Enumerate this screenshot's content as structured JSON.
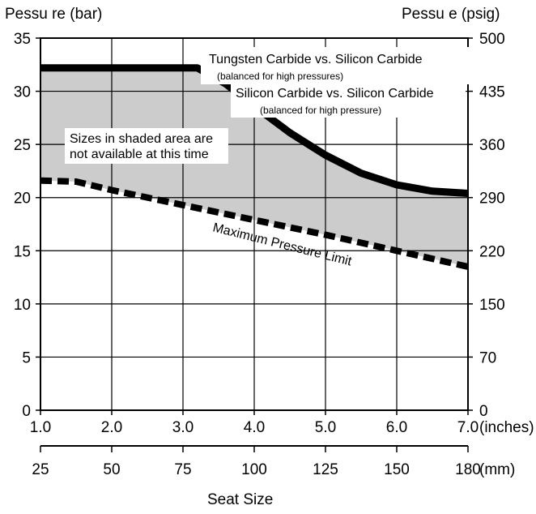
{
  "chart_data": {
    "type": "area",
    "left_axis_title": "Pessu re (bar)",
    "right_axis_title": "Pessu  e (psig)",
    "x_axis_title": "Seat Size",
    "x_inches_ticks": [
      "1.0",
      "2.0",
      "3.0",
      "4.0",
      "5.0",
      "6.0",
      "7.0"
    ],
    "x_inches_unit": "(inches)",
    "x_mm_ticks": [
      "25",
      "50",
      "75",
      "100",
      "125",
      "150",
      "180"
    ],
    "x_mm_unit": "(mm)",
    "y_bar_ticks": [
      "0",
      "5",
      "10",
      "15",
      "20",
      "25",
      "30",
      "35"
    ],
    "y_psig_ticks": [
      "0",
      "70",
      "150",
      "220",
      "290",
      "360",
      "435",
      "500"
    ],
    "xlim": [
      1.0,
      7.0
    ],
    "ylim": [
      0,
      35
    ],
    "grid": true,
    "series": [
      {
        "name": "Tungsten Carbide vs. Silicon Carbide",
        "subtitle": "(balanced for high pressures)",
        "style": "solid",
        "color": "#000000",
        "x": [
          1.0,
          1.5,
          2.0,
          2.5,
          3.0,
          3.2,
          3.6,
          4.0,
          4.5,
          5.0,
          5.5,
          6.0,
          6.5,
          7.0
        ],
        "y": [
          32.2,
          32.2,
          32.2,
          32.2,
          32.2,
          32.2,
          30.7,
          28.6,
          26.1,
          24.0,
          22.3,
          21.2,
          20.6,
          20.4
        ]
      },
      {
        "name": "Silicon Carbide vs. Silicon Carbide",
        "subtitle": "(balanced for high pressure)",
        "style": "solid",
        "color": "#000000",
        "x": [
          1.0,
          7.0
        ],
        "y": [
          32.2,
          20.4
        ]
      },
      {
        "name": "Maximum Pressure Limit",
        "style": "dashed",
        "color": "#000000",
        "x": [
          1.0,
          1.5,
          2.0,
          3.0,
          4.0,
          5.0,
          6.0,
          7.0
        ],
        "y": [
          21.6,
          21.5,
          20.7,
          19.3,
          17.9,
          16.5,
          15.0,
          13.5
        ]
      }
    ],
    "shaded_region": {
      "label": "Sizes in shaded area are not available at this time",
      "label_line1": "Sizes in shaded area are",
      "label_line2": "not available at this time",
      "color": "#cccccc"
    },
    "annotations": {
      "tc_label": "Tungsten Carbide vs. Silicon Carbide",
      "tc_sub": "(balanced for high pressures)",
      "sc_label": "Silicon Carbide vs. Silicon Carbide",
      "sc_sub": "(balanced for high pressure)",
      "max_label": "Maximum Pressure Limit"
    }
  }
}
